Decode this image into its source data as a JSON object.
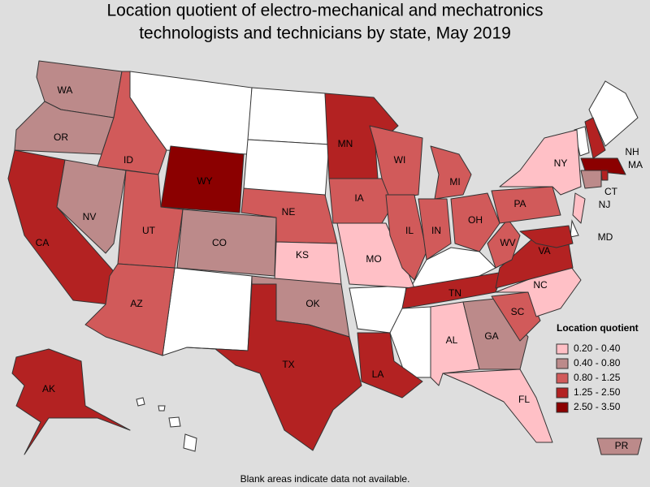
{
  "title_lines": [
    "Location quotient of electro-mechanical and mechatronics",
    "technologists and technicians by state, May 2019"
  ],
  "legend": {
    "title": "Location quotient",
    "items": [
      {
        "label": "0.20 - 0.40",
        "color": "#ffc0c6"
      },
      {
        "label": "0.40 - 0.80",
        "color": "#bc8a8a"
      },
      {
        "label": "0.80 - 1.25",
        "color": "#d15a5a"
      },
      {
        "label": "1.25 - 2.50",
        "color": "#b32222"
      },
      {
        "label": "2.50 - 3.50",
        "color": "#8b0000"
      }
    ]
  },
  "states": [
    {
      "label": "WA",
      "range": "0.40 - 0.80"
    },
    {
      "label": "OR",
      "range": "0.40 - 0.80"
    },
    {
      "label": "CA",
      "range": "1.25 - 2.50"
    },
    {
      "label": "NV",
      "range": "0.40 - 0.80"
    },
    {
      "label": "ID",
      "range": "0.80 - 1.25"
    },
    {
      "label": "WY",
      "range": "2.50 - 3.50"
    },
    {
      "label": "UT",
      "range": "0.80 - 1.25"
    },
    {
      "label": "AZ",
      "range": "0.80 - 1.25"
    },
    {
      "label": "CO",
      "range": "0.40 - 0.80"
    },
    {
      "label": "NE",
      "range": "0.80 - 1.25"
    },
    {
      "label": "KS",
      "range": "0.20 - 0.40"
    },
    {
      "label": "OK",
      "range": "0.40 - 0.80"
    },
    {
      "label": "TX",
      "range": "1.25 - 2.50"
    },
    {
      "label": "MN",
      "range": "1.25 - 2.50"
    },
    {
      "label": "IA",
      "range": "0.80 - 1.25"
    },
    {
      "label": "MO",
      "range": "0.20 - 0.40"
    },
    {
      "label": "LA",
      "range": "1.25 - 2.50"
    },
    {
      "label": "WI",
      "range": "0.80 - 1.25"
    },
    {
      "label": "IL",
      "range": "0.80 - 1.25"
    },
    {
      "label": "MI",
      "range": "0.80 - 1.25"
    },
    {
      "label": "IN",
      "range": "0.80 - 1.25"
    },
    {
      "label": "OH",
      "range": "0.80 - 1.25"
    },
    {
      "label": "TN",
      "range": "1.25 - 2.50"
    },
    {
      "label": "AL",
      "range": "0.20 - 0.40"
    },
    {
      "label": "GA",
      "range": "0.40 - 0.80"
    },
    {
      "label": "FL",
      "range": "0.20 - 0.40"
    },
    {
      "label": "SC",
      "range": "0.80 - 1.25"
    },
    {
      "label": "NC",
      "range": "0.20 - 0.40"
    },
    {
      "label": "VA",
      "range": "1.25 - 2.50"
    },
    {
      "label": "WV",
      "range": "0.80 - 1.25"
    },
    {
      "label": "PA",
      "range": "0.80 - 1.25"
    },
    {
      "label": "NY",
      "range": "0.20 - 0.40"
    },
    {
      "label": "NH",
      "range": "1.25 - 2.50"
    },
    {
      "label": "MA",
      "range": "2.50 - 3.50"
    },
    {
      "label": "CT",
      "range": "0.40 - 0.80"
    },
    {
      "range": "1.25 - 2.50"
    },
    {
      "label": "NJ",
      "range": "0.20 - 0.40"
    },
    {
      "label": "MD",
      "range": "1.25 - 2.50"
    },
    {
      "label": "AK",
      "range": "1.25 - 2.50"
    },
    {
      "label": "PR",
      "range": "0.40 - 0.80"
    }
  ],
  "footnote": "Blank areas indicate data not available."
}
